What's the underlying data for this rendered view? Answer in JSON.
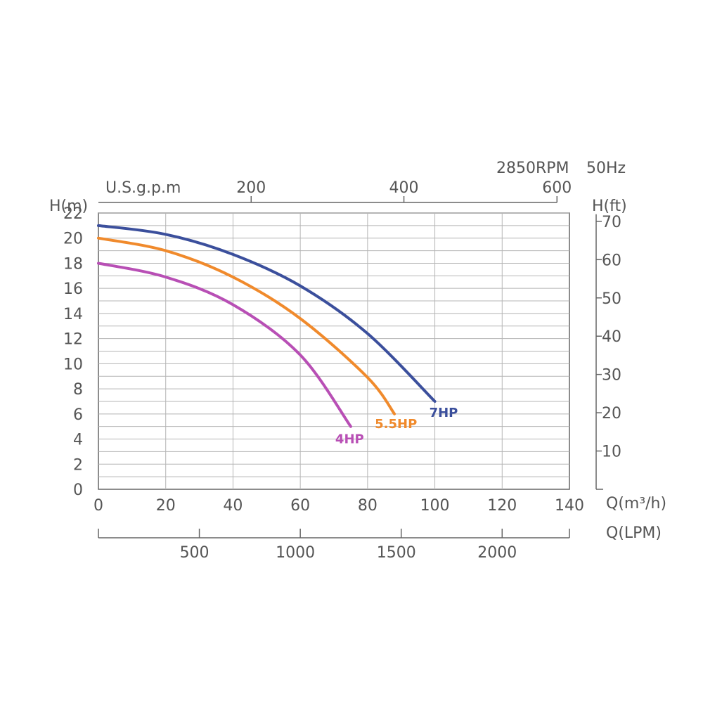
{
  "chart_data": {
    "type": "line",
    "header": {
      "rpm": "2850RPM",
      "freq": "50Hz"
    },
    "x": {
      "label": "Q(m³/h)",
      "range": [
        0,
        140
      ],
      "ticks": [
        0,
        20,
        40,
        60,
        80,
        100,
        120,
        140
      ]
    },
    "y": {
      "label": "H(m)",
      "range": [
        0,
        22
      ],
      "ticks": [
        0,
        2,
        4,
        6,
        8,
        10,
        12,
        14,
        16,
        18,
        20,
        22
      ]
    },
    "top_axis": {
      "label": "U.S.g.p.m",
      "ticks": [
        {
          "label": "200",
          "q": 45.4
        },
        {
          "label": "400",
          "q": 90.8
        },
        {
          "label": "600",
          "q": 136.3
        }
      ]
    },
    "right_axis": {
      "label": "H(ft)",
      "ticks": [
        10,
        20,
        30,
        40,
        50,
        60,
        70
      ]
    },
    "bottom_axis": {
      "label": "Q(LPM)",
      "ticks": [
        {
          "label": "500",
          "q": 30
        },
        {
          "label": "1000",
          "q": 60
        },
        {
          "label": "1500",
          "q": 90
        },
        {
          "label": "2000",
          "q": 120
        }
      ]
    },
    "grid": true,
    "series": [
      {
        "name": "7HP",
        "color": "#3b4f9c",
        "points": [
          [
            0,
            21.0
          ],
          [
            20,
            20.3
          ],
          [
            40,
            18.7
          ],
          [
            60,
            16.2
          ],
          [
            80,
            12.4
          ],
          [
            100,
            7.0
          ]
        ]
      },
      {
        "name": "5.5HP",
        "color": "#f08a2c",
        "points": [
          [
            0,
            20.0
          ],
          [
            20,
            19.0
          ],
          [
            40,
            16.9
          ],
          [
            60,
            13.6
          ],
          [
            80,
            8.9
          ],
          [
            88,
            6.0
          ]
        ]
      },
      {
        "name": "4HP",
        "color": "#b84fb5",
        "points": [
          [
            0,
            18.0
          ],
          [
            20,
            16.9
          ],
          [
            40,
            14.7
          ],
          [
            60,
            10.7
          ],
          [
            75,
            5.0
          ]
        ]
      }
    ]
  }
}
